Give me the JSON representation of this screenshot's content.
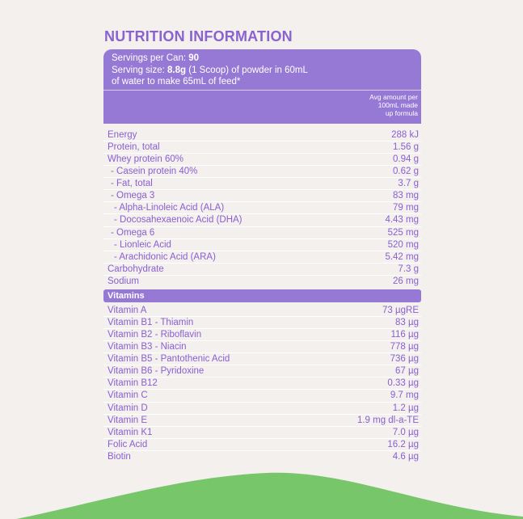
{
  "title": "NUTRITION INFORMATION",
  "colors": {
    "purple": "#9679d5",
    "title_purple": "#8a63cf",
    "text_purple": "#8a5fd2",
    "green": "#78c66a",
    "background": "#f3f0ed"
  },
  "header": {
    "servings_label": "Servings per Can: ",
    "servings_value": "90",
    "size_label": "Serving size: ",
    "size_value": "8.8g",
    "size_rest": " (1 Scoop) of powder in 60mL",
    "size_line2": "of water to make 65mL of feed*",
    "column_line1": "Avg amount per",
    "column_line2": "100mL made",
    "column_line3": "up formula"
  },
  "nutrients": [
    {
      "name": "Energy",
      "value": "288 kJ"
    },
    {
      "name": "Protein, total",
      "value": "1.56 g"
    },
    {
      "name": "Whey protein 60%",
      "value": "0.94 g"
    },
    {
      "name": "- Casein protein 40%",
      "value": "0.62 g"
    },
    {
      "name": "- Fat, total",
      "value": "3.7 g"
    },
    {
      "name": "- Omega 3",
      "value": "83 mg"
    },
    {
      "name": "- Alpha-Linoleic Acid (ALA)",
      "value": "79 mg"
    },
    {
      "name": "- Docosahexaenoic Acid (DHA)",
      "value": "4.43 mg"
    },
    {
      "name": "- Omega 6",
      "value": "525 mg"
    },
    {
      "name": "- Lionleic Acid",
      "value": "520 mg"
    },
    {
      "name": "- Arachidonic Acid (ARA)",
      "value": "5.42 mg"
    },
    {
      "name": "Carbohydrate",
      "value": "7.3 g"
    },
    {
      "name": "Sodium",
      "value": "26 mg"
    }
  ],
  "vitamins_heading": "Vitamins",
  "vitamins": [
    {
      "name": "Vitamin A",
      "value": "73 µgRE"
    },
    {
      "name": "Vitamin B1 - Thiamin",
      "value": "83 µg"
    },
    {
      "name": "Vitamin B2 - Riboflavin",
      "value": "116 µg"
    },
    {
      "name": "Vitamin B3 - Niacin",
      "value": "778 µg"
    },
    {
      "name": "Vitamin B5 - Pantothenic Acid",
      "value": "736 µg"
    },
    {
      "name": "Vitamin B6 - Pyridoxine",
      "value": "67 µg"
    },
    {
      "name": "Vitamin B12",
      "value": "0.33 µg"
    },
    {
      "name": "Vitamin C",
      "value": "9.7 mg"
    },
    {
      "name": "Vitamin D",
      "value": "1.2 µg"
    },
    {
      "name": "Vitamin E",
      "value": "1.9 mg dl-a-TE"
    },
    {
      "name": "Vitamin K1",
      "value": "7.0 µg"
    },
    {
      "name": "Folic Acid",
      "value": "16.2 µg"
    },
    {
      "name": "Biotin",
      "value": "4.6 µg"
    }
  ]
}
